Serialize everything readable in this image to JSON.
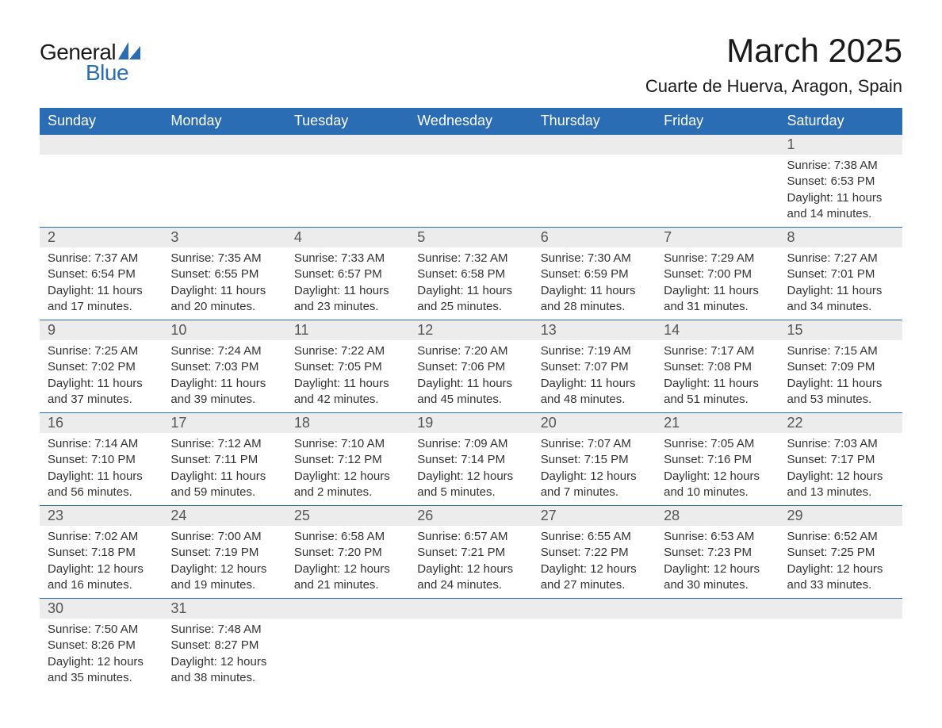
{
  "brand": {
    "part1": "General",
    "part2": "Blue",
    "text_color": "#1a1a1a",
    "accent_color": "#2a6db5"
  },
  "title": "March 2025",
  "location": "Cuarte de Huerva, Aragon, Spain",
  "colors": {
    "header_bg": "#2a6db5",
    "header_text": "#ffffff",
    "daynum_bg": "#ececec",
    "daynum_text": "#555555",
    "body_text": "#333333",
    "border": "#2a6db5",
    "page_bg": "#ffffff"
  },
  "weekdays": [
    "Sunday",
    "Monday",
    "Tuesday",
    "Wednesday",
    "Thursday",
    "Friday",
    "Saturday"
  ],
  "labels": {
    "sunrise": "Sunrise:",
    "sunset": "Sunset:",
    "daylight": "Daylight:"
  },
  "weeks": [
    [
      null,
      null,
      null,
      null,
      null,
      null,
      {
        "day": "1",
        "sunrise": "7:38 AM",
        "sunset": "6:53 PM",
        "daylight": "11 hours and 14 minutes."
      }
    ],
    [
      {
        "day": "2",
        "sunrise": "7:37 AM",
        "sunset": "6:54 PM",
        "daylight": "11 hours and 17 minutes."
      },
      {
        "day": "3",
        "sunrise": "7:35 AM",
        "sunset": "6:55 PM",
        "daylight": "11 hours and 20 minutes."
      },
      {
        "day": "4",
        "sunrise": "7:33 AM",
        "sunset": "6:57 PM",
        "daylight": "11 hours and 23 minutes."
      },
      {
        "day": "5",
        "sunrise": "7:32 AM",
        "sunset": "6:58 PM",
        "daylight": "11 hours and 25 minutes."
      },
      {
        "day": "6",
        "sunrise": "7:30 AM",
        "sunset": "6:59 PM",
        "daylight": "11 hours and 28 minutes."
      },
      {
        "day": "7",
        "sunrise": "7:29 AM",
        "sunset": "7:00 PM",
        "daylight": "11 hours and 31 minutes."
      },
      {
        "day": "8",
        "sunrise": "7:27 AM",
        "sunset": "7:01 PM",
        "daylight": "11 hours and 34 minutes."
      }
    ],
    [
      {
        "day": "9",
        "sunrise": "7:25 AM",
        "sunset": "7:02 PM",
        "daylight": "11 hours and 37 minutes."
      },
      {
        "day": "10",
        "sunrise": "7:24 AM",
        "sunset": "7:03 PM",
        "daylight": "11 hours and 39 minutes."
      },
      {
        "day": "11",
        "sunrise": "7:22 AM",
        "sunset": "7:05 PM",
        "daylight": "11 hours and 42 minutes."
      },
      {
        "day": "12",
        "sunrise": "7:20 AM",
        "sunset": "7:06 PM",
        "daylight": "11 hours and 45 minutes."
      },
      {
        "day": "13",
        "sunrise": "7:19 AM",
        "sunset": "7:07 PM",
        "daylight": "11 hours and 48 minutes."
      },
      {
        "day": "14",
        "sunrise": "7:17 AM",
        "sunset": "7:08 PM",
        "daylight": "11 hours and 51 minutes."
      },
      {
        "day": "15",
        "sunrise": "7:15 AM",
        "sunset": "7:09 PM",
        "daylight": "11 hours and 53 minutes."
      }
    ],
    [
      {
        "day": "16",
        "sunrise": "7:14 AM",
        "sunset": "7:10 PM",
        "daylight": "11 hours and 56 minutes."
      },
      {
        "day": "17",
        "sunrise": "7:12 AM",
        "sunset": "7:11 PM",
        "daylight": "11 hours and 59 minutes."
      },
      {
        "day": "18",
        "sunrise": "7:10 AM",
        "sunset": "7:12 PM",
        "daylight": "12 hours and 2 minutes."
      },
      {
        "day": "19",
        "sunrise": "7:09 AM",
        "sunset": "7:14 PM",
        "daylight": "12 hours and 5 minutes."
      },
      {
        "day": "20",
        "sunrise": "7:07 AM",
        "sunset": "7:15 PM",
        "daylight": "12 hours and 7 minutes."
      },
      {
        "day": "21",
        "sunrise": "7:05 AM",
        "sunset": "7:16 PM",
        "daylight": "12 hours and 10 minutes."
      },
      {
        "day": "22",
        "sunrise": "7:03 AM",
        "sunset": "7:17 PM",
        "daylight": "12 hours and 13 minutes."
      }
    ],
    [
      {
        "day": "23",
        "sunrise": "7:02 AM",
        "sunset": "7:18 PM",
        "daylight": "12 hours and 16 minutes."
      },
      {
        "day": "24",
        "sunrise": "7:00 AM",
        "sunset": "7:19 PM",
        "daylight": "12 hours and 19 minutes."
      },
      {
        "day": "25",
        "sunrise": "6:58 AM",
        "sunset": "7:20 PM",
        "daylight": "12 hours and 21 minutes."
      },
      {
        "day": "26",
        "sunrise": "6:57 AM",
        "sunset": "7:21 PM",
        "daylight": "12 hours and 24 minutes."
      },
      {
        "day": "27",
        "sunrise": "6:55 AM",
        "sunset": "7:22 PM",
        "daylight": "12 hours and 27 minutes."
      },
      {
        "day": "28",
        "sunrise": "6:53 AM",
        "sunset": "7:23 PM",
        "daylight": "12 hours and 30 minutes."
      },
      {
        "day": "29",
        "sunrise": "6:52 AM",
        "sunset": "7:25 PM",
        "daylight": "12 hours and 33 minutes."
      }
    ],
    [
      {
        "day": "30",
        "sunrise": "7:50 AM",
        "sunset": "8:26 PM",
        "daylight": "12 hours and 35 minutes."
      },
      {
        "day": "31",
        "sunrise": "7:48 AM",
        "sunset": "8:27 PM",
        "daylight": "12 hours and 38 minutes."
      },
      null,
      null,
      null,
      null,
      null
    ]
  ]
}
